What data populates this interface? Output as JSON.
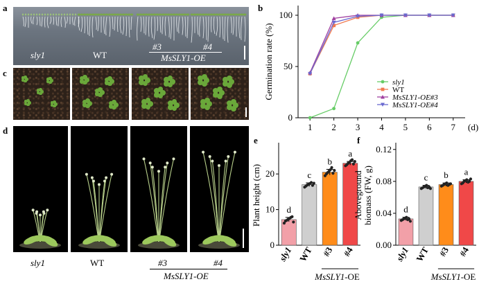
{
  "panels": {
    "a": {
      "letter": "a",
      "labels": [
        "sly1",
        "WT",
        "#3",
        "#4"
      ],
      "group_label": "MsSLY1-OE"
    },
    "b": {
      "letter": "b"
    },
    "c": {
      "letter": "c"
    },
    "d": {
      "letter": "d",
      "labels": [
        "sly1",
        "WT",
        "#3",
        "#4"
      ],
      "group_label": "MsSLY1-OE"
    },
    "e": {
      "letter": "e"
    },
    "f": {
      "letter": "f"
    }
  },
  "chart_data": [
    {
      "id": "b",
      "type": "line",
      "ylabel": "Germination rate (%)",
      "xunit": "(d)",
      "x": [
        1,
        2,
        3,
        4,
        5,
        6,
        7
      ],
      "ylim": [
        0,
        100
      ],
      "yticks": [
        0,
        50,
        100
      ],
      "legend_position": "bottom-right",
      "series": [
        {
          "name": "sly1",
          "italic": true,
          "color": "#66cc66",
          "marker": "circle",
          "values": [
            0,
            9,
            73,
            98,
            100,
            100,
            100
          ]
        },
        {
          "name": "WT",
          "italic": false,
          "color": "#f07a50",
          "marker": "square",
          "values": [
            43,
            90,
            98,
            100,
            100,
            100,
            100
          ]
        },
        {
          "name": "MsSLY1-OE#3",
          "italic": true,
          "color": "#a040a0",
          "marker": "triangle-up",
          "values": [
            44,
            97,
            100,
            100,
            100,
            100,
            100
          ]
        },
        {
          "name": "MsSLY1-OE#4",
          "italic": true,
          "color": "#6a6ad0",
          "marker": "triangle-down",
          "values": [
            43,
            93,
            99,
            100,
            100,
            100,
            100
          ]
        }
      ]
    },
    {
      "id": "e",
      "type": "bar",
      "ylabel": "Plant height (cm)",
      "categories": [
        "sly1",
        "WT",
        "#3",
        "#4"
      ],
      "category_italic": [
        true,
        false,
        false,
        false
      ],
      "group_label": "MsSLY1-OE",
      "values": [
        7.2,
        17.0,
        20.5,
        23.0
      ],
      "errors": [
        0.6,
        0.5,
        0.8,
        0.5
      ],
      "letters": [
        "d",
        "c",
        "b",
        "a"
      ],
      "colors": [
        "#f2a0a8",
        "#cfcfcf",
        "#ff8c1a",
        "#f04848"
      ],
      "ylim": [
        0,
        28
      ],
      "yticks": [
        0,
        10,
        20
      ],
      "points": [
        [
          6.2,
          6.8,
          7.0,
          7.3,
          7.5,
          7.8,
          8.0,
          6.5
        ],
        [
          16.3,
          16.6,
          16.9,
          17.1,
          17.3,
          17.6,
          16.8,
          17.4
        ],
        [
          19.5,
          20.0,
          20.4,
          20.8,
          21.2,
          21.8,
          20.2,
          21.0
        ],
        [
          22.3,
          22.6,
          23.0,
          23.3,
          23.7,
          24.0,
          22.8,
          23.5
        ]
      ]
    },
    {
      "id": "f",
      "type": "bar",
      "ylabel": "Aboveground biomass (FW, g)",
      "ylabel_lines": [
        "Aboveground",
        "biomass (FW,  g)"
      ],
      "categories": [
        "sly1",
        "WT",
        "#3",
        "#4"
      ],
      "category_italic": [
        true,
        false,
        false,
        false
      ],
      "group_label": "MsSLY1-OE",
      "values": [
        0.033,
        0.073,
        0.076,
        0.08
      ],
      "errors": [
        0.002,
        0.002,
        0.002,
        0.002
      ],
      "letters": [
        "d",
        "c",
        "b",
        "a"
      ],
      "colors": [
        "#f2a0a8",
        "#cfcfcf",
        "#ff8c1a",
        "#f04848"
      ],
      "ylim": [
        0,
        0.125
      ],
      "yticks": [
        0.0,
        0.04,
        0.08,
        0.12
      ],
      "ytick_labels": [
        "0.00",
        "0.04",
        "0.08",
        "0.12"
      ],
      "points": [
        [
          0.031,
          0.032,
          0.033,
          0.034,
          0.035,
          0.032,
          0.033,
          0.03
        ],
        [
          0.071,
          0.072,
          0.073,
          0.074,
          0.075,
          0.072,
          0.073,
          0.071
        ],
        [
          0.074,
          0.075,
          0.076,
          0.077,
          0.078,
          0.075,
          0.076,
          0.077
        ],
        [
          0.077,
          0.078,
          0.08,
          0.081,
          0.082,
          0.079,
          0.08,
          0.083
        ]
      ]
    }
  ]
}
